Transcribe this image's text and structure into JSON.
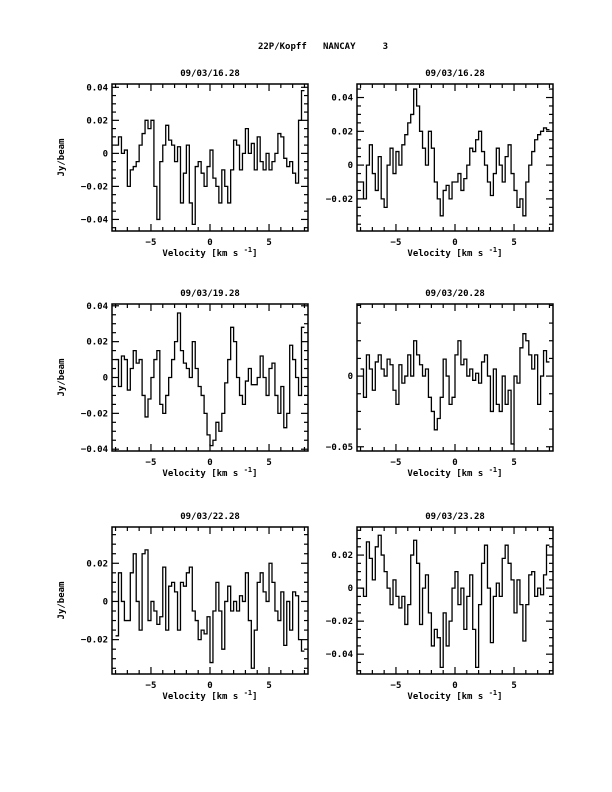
{
  "header": {
    "title": "22P/Kopff   NANCAY     3"
  },
  "chart_data": [
    {
      "type": "line",
      "title": "09/03/16.28",
      "xlabel": "Velocity [km s",
      "xlabel_sup": "-1",
      "xlabel_end": "]",
      "ylabel": "Jy/beam",
      "xlim": [
        -8.3,
        8.3
      ],
      "ylim": [
        -0.047,
        0.042
      ],
      "xticks": [
        -5,
        0,
        5
      ],
      "yticks": [
        -0.04,
        -0.02,
        0,
        0.02,
        0.04
      ],
      "ytick_labels": [
        "-0.04",
        "-0.02",
        "0",
        "0.02",
        "0.04"
      ],
      "grid": false,
      "x_start": -7.875,
      "x_step": 0.25,
      "values": [
        0.005,
        0.01,
        0.0,
        0.002,
        -0.02,
        -0.01,
        -0.008,
        -0.005,
        0.005,
        0.012,
        0.02,
        0.015,
        0.02,
        -0.02,
        -0.04,
        -0.005,
        0.005,
        0.017,
        0.008,
        0.005,
        -0.005,
        0.004,
        -0.03,
        -0.012,
        0.005,
        -0.03,
        -0.043,
        -0.008,
        -0.005,
        -0.012,
        -0.02,
        -0.008,
        0.002,
        -0.015,
        -0.02,
        -0.03,
        -0.01,
        -0.02,
        -0.03,
        -0.01,
        0.008,
        0.005,
        -0.01,
        0.0,
        0.015,
        0.0,
        0.006,
        -0.01,
        0.01,
        -0.005,
        -0.01,
        0.0,
        -0.01,
        -0.005,
        0.0,
        0.012,
        0.01,
        -0.003,
        -0.008,
        -0.005,
        -0.012,
        -0.018,
        0.02,
        0.038
      ]
    },
    {
      "type": "line",
      "title": "09/03/16.28",
      "xlabel": "Velocity [km s",
      "xlabel_sup": "-1",
      "xlabel_end": "]",
      "ylabel": "",
      "xlim": [
        -8.3,
        8.3
      ],
      "ylim": [
        -0.039,
        0.048
      ],
      "xticks": [
        -5,
        0,
        5
      ],
      "yticks": [
        -0.02,
        0,
        0.02,
        0.04
      ],
      "ytick_labels": [
        "-0.02",
        "0",
        "0.02",
        "0.04"
      ],
      "grid": false,
      "x_start": -7.875,
      "x_step": 0.25,
      "values": [
        -0.01,
        -0.02,
        0.0,
        0.012,
        -0.005,
        -0.015,
        0.005,
        -0.02,
        -0.025,
        0.0,
        0.01,
        -0.005,
        0.008,
        0.0,
        0.012,
        0.018,
        0.025,
        0.03,
        0.045,
        0.035,
        0.02,
        0.01,
        0.0,
        0.02,
        0.01,
        -0.01,
        -0.02,
        -0.03,
        -0.015,
        -0.012,
        -0.02,
        -0.01,
        -0.01,
        -0.005,
        -0.015,
        -0.008,
        0.0,
        0.01,
        0.008,
        0.015,
        0.02,
        0.008,
        0.0,
        -0.01,
        -0.018,
        -0.005,
        0.01,
        0.0,
        -0.01,
        0.005,
        0.012,
        -0.005,
        -0.015,
        -0.025,
        -0.02,
        -0.03,
        -0.01,
        0.0,
        0.008,
        0.015,
        0.018,
        0.02,
        0.022,
        0.021
      ]
    },
    {
      "type": "line",
      "title": "09/03/19.28",
      "xlabel": "Velocity [km s",
      "xlabel_sup": "-1",
      "xlabel_end": "]",
      "ylabel": "Jy/beam",
      "xlim": [
        -8.3,
        8.3
      ],
      "ylim": [
        -0.041,
        0.041
      ],
      "xticks": [
        -5,
        0,
        5
      ],
      "yticks": [
        -0.04,
        -0.02,
        0,
        0.02,
        0.04
      ],
      "ytick_labels": [
        "-0.04",
        "-0.02",
        "0",
        "0.02",
        "0.04"
      ],
      "grid": false,
      "x_start": -7.875,
      "x_step": 0.25,
      "values": [
        0.01,
        -0.005,
        0.012,
        0.01,
        -0.007,
        0.005,
        0.015,
        0.008,
        0.01,
        -0.01,
        -0.022,
        -0.012,
        0.0,
        0.01,
        0.015,
        -0.015,
        -0.02,
        -0.01,
        0.0,
        0.01,
        0.02,
        0.036,
        0.015,
        0.008,
        0.005,
        0.0,
        0.02,
        0.005,
        -0.005,
        -0.01,
        -0.02,
        -0.032,
        -0.038,
        -0.035,
        -0.025,
        -0.03,
        -0.02,
        -0.003,
        0.01,
        0.028,
        0.02,
        0.0,
        -0.01,
        -0.015,
        -0.002,
        0.005,
        -0.004,
        -0.004,
        0.0,
        0.012,
        0.0,
        -0.01,
        0.005,
        0.008,
        -0.01,
        -0.02,
        -0.005,
        -0.028,
        -0.02,
        0.018,
        0.01,
        0.0,
        -0.01,
        0.028
      ]
    },
    {
      "type": "line",
      "title": "09/03/20.28",
      "xlabel": "Velocity [km s",
      "xlabel_sup": "-1",
      "xlabel_end": "]",
      "ylabel": "",
      "xlim": [
        -8.3,
        8.3
      ],
      "ylim": [
        -0.053,
        0.051
      ],
      "xticks": [
        -5,
        0,
        5
      ],
      "yticks": [
        -0.05,
        0
      ],
      "ytick_labels": [
        "-0.05",
        "0"
      ],
      "grid": false,
      "x_start": -7.875,
      "x_step": 0.25,
      "values": [
        0.005,
        -0.015,
        0.015,
        0.005,
        -0.01,
        0.01,
        0.015,
        0.005,
        0.0,
        0.012,
        0.008,
        -0.01,
        -0.02,
        0.008,
        -0.005,
        0.0,
        0.015,
        0.0,
        0.025,
        0.015,
        0.008,
        0.0,
        0.005,
        -0.015,
        -0.025,
        -0.038,
        -0.03,
        -0.015,
        0.012,
        0.0,
        -0.02,
        -0.015,
        0.015,
        0.025,
        0.008,
        0.012,
        0.0,
        0.005,
        -0.003,
        0.002,
        -0.005,
        0.01,
        0.015,
        0.0,
        -0.025,
        0.005,
        -0.02,
        -0.025,
        0.0,
        -0.02,
        -0.01,
        -0.048,
        0.0,
        -0.005,
        0.02,
        0.03,
        0.025,
        0.015,
        0.005,
        0.015,
        -0.02,
        0.0,
        0.018,
        0.01
      ]
    },
    {
      "type": "line",
      "title": "09/03/22.28",
      "xlabel": "Velocity [km s",
      "xlabel_sup": "-1",
      "xlabel_end": "]",
      "ylabel": "Jy/beam",
      "xlim": [
        -8.3,
        8.3
      ],
      "ylim": [
        -0.038,
        0.039
      ],
      "xticks": [
        -5,
        0,
        5
      ],
      "yticks": [
        -0.02,
        0,
        0.02
      ],
      "ytick_labels": [
        "-0.02",
        "0",
        "0.02"
      ],
      "grid": false,
      "x_start": -7.875,
      "x_step": 0.25,
      "values": [
        -0.018,
        0.015,
        0.0,
        -0.01,
        -0.01,
        0.015,
        0.025,
        0.0,
        -0.015,
        0.025,
        0.027,
        -0.01,
        0.0,
        -0.005,
        -0.012,
        -0.008,
        0.018,
        -0.015,
        0.008,
        0.01,
        0.005,
        -0.015,
        0.01,
        0.008,
        0.015,
        0.018,
        -0.005,
        -0.01,
        -0.02,
        -0.015,
        -0.017,
        -0.008,
        -0.032,
        -0.005,
        0.01,
        -0.005,
        -0.025,
        0.0,
        0.008,
        -0.005,
        0.0,
        -0.005,
        0.003,
        0.0,
        0.015,
        -0.01,
        -0.035,
        -0.015,
        0.01,
        0.015,
        0.005,
        0.0,
        0.02,
        0.01,
        -0.005,
        -0.01,
        0.005,
        -0.023,
        0.0,
        -0.015,
        0.005,
        0.003,
        -0.02,
        -0.026
      ]
    },
    {
      "type": "line",
      "title": "09/03/23.28",
      "xlabel": "Velocity [km s",
      "xlabel_sup": "-1",
      "xlabel_end": "]",
      "ylabel": "",
      "xlim": [
        -8.3,
        8.3
      ],
      "ylim": [
        -0.052,
        0.037
      ],
      "xticks": [
        -5,
        0,
        5
      ],
      "yticks": [
        -0.04,
        -0.02,
        0,
        0.02
      ],
      "ytick_labels": [
        "-0.04",
        "-0.02",
        "0",
        "0.02"
      ],
      "grid": false,
      "x_start": -7.875,
      "x_step": 0.25,
      "values": [
        0.0,
        -0.005,
        0.028,
        0.018,
        0.005,
        0.025,
        0.032,
        0.02,
        0.01,
        0.0,
        -0.01,
        0.005,
        -0.005,
        -0.012,
        -0.005,
        -0.022,
        -0.01,
        0.02,
        0.029,
        0.015,
        -0.022,
        0.0,
        0.008,
        -0.015,
        -0.035,
        -0.025,
        -0.03,
        -0.048,
        -0.015,
        -0.035,
        -0.02,
        0.0,
        0.01,
        -0.01,
        0.0,
        -0.025,
        -0.005,
        0.008,
        -0.025,
        -0.048,
        -0.01,
        0.015,
        0.026,
        0.0,
        -0.033,
        -0.005,
        0.003,
        -0.005,
        0.018,
        0.026,
        0.015,
        0.005,
        -0.015,
        0.005,
        -0.01,
        -0.032,
        -0.01,
        0.008,
        0.01,
        -0.005,
        0.0,
        -0.004,
        0.008,
        0.026
      ]
    }
  ]
}
